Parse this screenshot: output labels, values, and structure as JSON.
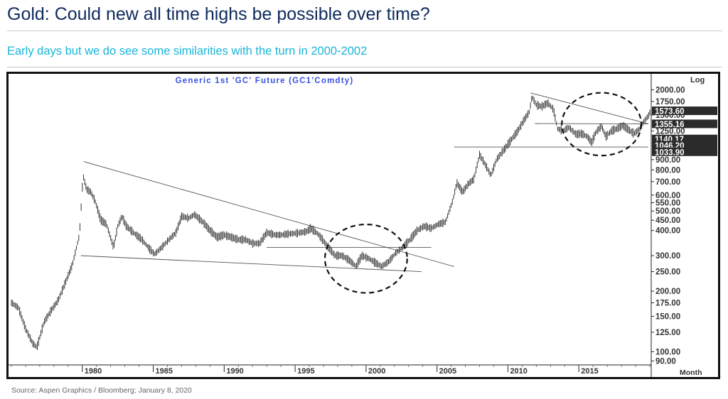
{
  "header": {
    "title": "Gold: Could new all time highs be possible over time?",
    "subtitle": "Early days but we do see some similarities with the turn in 2000-2002"
  },
  "footer": {
    "source": "Source: Aspen Graphics / Bloomberg; January 8, 2020"
  },
  "chart_data": {
    "type": "bar",
    "subtype": "ohlc",
    "title": "Generic 1st 'GC' Future (GC1'Comdty)",
    "scale_label": "Log",
    "x_period_label": "Month",
    "y_scale": "log",
    "ylim": [
      86,
      2250
    ],
    "xlim": [
      1975.0,
      2020.1
    ],
    "x_ticks": [
      {
        "value": 1980,
        "label": "1980"
      },
      {
        "value": 1985,
        "label": "1985"
      },
      {
        "value": 1990,
        "label": "1990"
      },
      {
        "value": 1995,
        "label": "1995"
      },
      {
        "value": 2000,
        "label": "2000"
      },
      {
        "value": 2005,
        "label": "2005"
      },
      {
        "value": 2010,
        "label": "2010"
      },
      {
        "value": 2015,
        "label": "2015"
      }
    ],
    "y_ticks": [
      {
        "value": 90,
        "label": "90.00"
      },
      {
        "value": 100,
        "label": "100.00"
      },
      {
        "value": 125,
        "label": "125.00"
      },
      {
        "value": 150,
        "label": "150.00"
      },
      {
        "value": 175,
        "label": "175.00"
      },
      {
        "value": 200,
        "label": "200.00"
      },
      {
        "value": 250,
        "label": "250.00"
      },
      {
        "value": 300,
        "label": "300.00"
      },
      {
        "value": 400,
        "label": "400.00"
      },
      {
        "value": 450,
        "label": "450.00"
      },
      {
        "value": 500,
        "label": "500.00"
      },
      {
        "value": 550,
        "label": "550.00"
      },
      {
        "value": 600,
        "label": "600.00"
      },
      {
        "value": 700,
        "label": "700.00"
      },
      {
        "value": 800,
        "label": "800.00"
      },
      {
        "value": 900,
        "label": "900.00"
      },
      {
        "value": 1250,
        "label": "1250.00"
      },
      {
        "value": 1500,
        "label": "1500.00"
      },
      {
        "value": 1750,
        "label": "1750.00"
      },
      {
        "value": 2000,
        "label": "2000.00"
      }
    ],
    "price_tags": [
      {
        "value": 1573.6,
        "label": "1573.60"
      },
      {
        "value": 1355.16,
        "label": "1355.16"
      },
      {
        "value": 1140.17,
        "label": "1140.17"
      },
      {
        "value": 1046.2,
        "label": "1046.20"
      },
      {
        "value": 1033.9,
        "label": "1033.90"
      }
    ],
    "series": [
      {
        "x": [
          1975.0,
          1975.5,
          1976.0,
          1976.5,
          1976.8,
          1977.3,
          1977.8,
          1978.3,
          1978.8,
          1979.3,
          1979.8,
          1980.05,
          1980.3,
          1980.6,
          1980.9,
          1981.3,
          1981.7,
          1982.2,
          1982.5,
          1982.8,
          1983.1,
          1983.6,
          1984.2,
          1984.8,
          1985.1,
          1985.6,
          1986.1,
          1986.6,
          1987.0,
          1987.5,
          1987.9,
          1988.5,
          1989.0,
          1989.5,
          1990.0,
          1990.5,
          1991.0,
          1991.5,
          1992.0,
          1992.5,
          1993.0,
          1993.6,
          1994.0,
          1994.6,
          1995.2,
          1995.8,
          1996.1,
          1996.6,
          1997.2,
          1997.8,
          1998.3,
          1998.8,
          1999.3,
          1999.7,
          2000.2,
          2000.7,
          2001.1,
          2001.6,
          2002.1,
          2002.6,
          2003.1,
          2003.6,
          2004.1,
          2004.6,
          2005.1,
          2005.6,
          2006.1,
          2006.4,
          2006.8,
          2007.2,
          2007.6,
          2008.0,
          2008.2,
          2008.6,
          2008.8,
          2009.2,
          2009.7,
          2010.2,
          2010.7,
          2011.1,
          2011.5,
          2011.7,
          2012.0,
          2012.4,
          2012.8,
          2013.2,
          2013.5,
          2013.9,
          2014.3,
          2014.8,
          2015.2,
          2015.6,
          2015.9,
          2016.2,
          2016.6,
          2016.9,
          2017.3,
          2017.7,
          2018.1,
          2018.6,
          2018.9,
          2019.3,
          2019.6,
          2019.9,
          2020.05
        ],
        "y": [
          175,
          165,
          130,
          110,
          105,
          140,
          160,
          180,
          220,
          270,
          380,
          750,
          640,
          620,
          560,
          450,
          430,
          330,
          420,
          470,
          420,
          390,
          360,
          320,
          305,
          330,
          360,
          390,
          470,
          460,
          480,
          440,
          400,
          370,
          380,
          370,
          360,
          360,
          345,
          345,
          390,
          380,
          380,
          385,
          388,
          395,
          410,
          385,
          340,
          300,
          300,
          285,
          265,
          300,
          290,
          275,
          265,
          280,
          310,
          330,
          360,
          400,
          420,
          410,
          430,
          440,
          560,
          690,
          620,
          680,
          720,
          950,
          900,
          800,
          750,
          900,
          1000,
          1120,
          1250,
          1400,
          1550,
          1850,
          1680,
          1650,
          1720,
          1600,
          1280,
          1250,
          1300,
          1200,
          1210,
          1170,
          1090,
          1230,
          1320,
          1170,
          1250,
          1280,
          1330,
          1250,
          1210,
          1280,
          1400,
          1480,
          1570
        ]
      }
    ],
    "trendlines": [
      {
        "from": {
          "x": 1980.1,
          "y": 880
        },
        "to": {
          "x": 2006.2,
          "y": 265
        }
      },
      {
        "from": {
          "x": 1979.9,
          "y": 300
        },
        "to": {
          "x": 2003.9,
          "y": 250
        }
      },
      {
        "from": {
          "x": 1993.0,
          "y": 330
        },
        "to": {
          "x": 2004.6,
          "y": 330
        }
      },
      {
        "from": {
          "x": 2011.6,
          "y": 1930
        },
        "to": {
          "x": 2019.9,
          "y": 1355
        }
      },
      {
        "from": {
          "x": 2011.9,
          "y": 1360
        },
        "to": {
          "x": 2019.9,
          "y": 1355
        }
      },
      {
        "from": {
          "x": 2006.2,
          "y": 1040
        },
        "to": {
          "x": 2019.9,
          "y": 1040
        }
      }
    ],
    "highlights": [
      {
        "center": {
          "x": 2000.0,
          "y": 290
        },
        "rx": 2.9,
        "ry": 0.12
      },
      {
        "center": {
          "x": 2016.6,
          "y": 1350
        },
        "rx": 2.8,
        "ry": 0.11
      }
    ]
  }
}
